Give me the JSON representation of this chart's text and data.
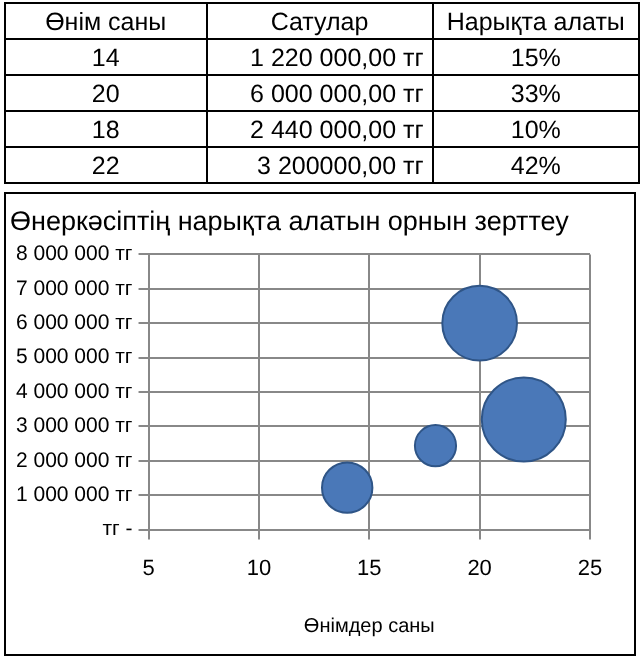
{
  "chart_data": [
    {
      "type": "other",
      "annotations": [
        "Өнім саны",
        "Сатулар",
        "Нарықта алаты",
        "14",
        "1 220 000,00 тг",
        "15%",
        "20",
        "6 000 000,00 тг",
        "33%",
        "18",
        "2 440 000,00 тг",
        "10%",
        "22",
        "3 200000,00 тг",
        "42%"
      ]
    },
    {
      "type": "bubble",
      "title": "Өнеркәсіптің нарықта алатын орнын зерттеу",
      "xlabel": "Өнімдер саны",
      "x": [
        14,
        20,
        18,
        22
      ],
      "series": [
        {
          "color": "#4a78b8",
          "values": [
            1220000,
            6000000,
            2440000,
            3200000
          ],
          "sizes": [
            0.36,
            0.79,
            0.24,
            1
          ]
        }
      ],
      "xlim": [
        5,
        25
      ],
      "xticks": [
        5,
        10,
        15,
        20,
        25
      ],
      "ylim": [
        0,
        8000000
      ],
      "yticks": [
        {
          "value": 0,
          "label": "тг -"
        },
        {
          "value": 1000000,
          "label": "1 000 000 тг"
        },
        {
          "value": 2000000,
          "label": "2 000 000 тг"
        },
        {
          "value": 3000000,
          "label": "3 000 000 тг"
        },
        {
          "value": 4000000,
          "label": "4 000 000 тг"
        },
        {
          "value": 5000000,
          "label": "5 000 000 тг"
        },
        {
          "value": 6000000,
          "label": "6 000 000 тг"
        },
        {
          "value": 7000000,
          "label": "7 000 000 тг"
        },
        {
          "value": 8000000,
          "label": "8 000 000 тг"
        }
      ],
      "grid": true,
      "legend": false
    }
  ]
}
